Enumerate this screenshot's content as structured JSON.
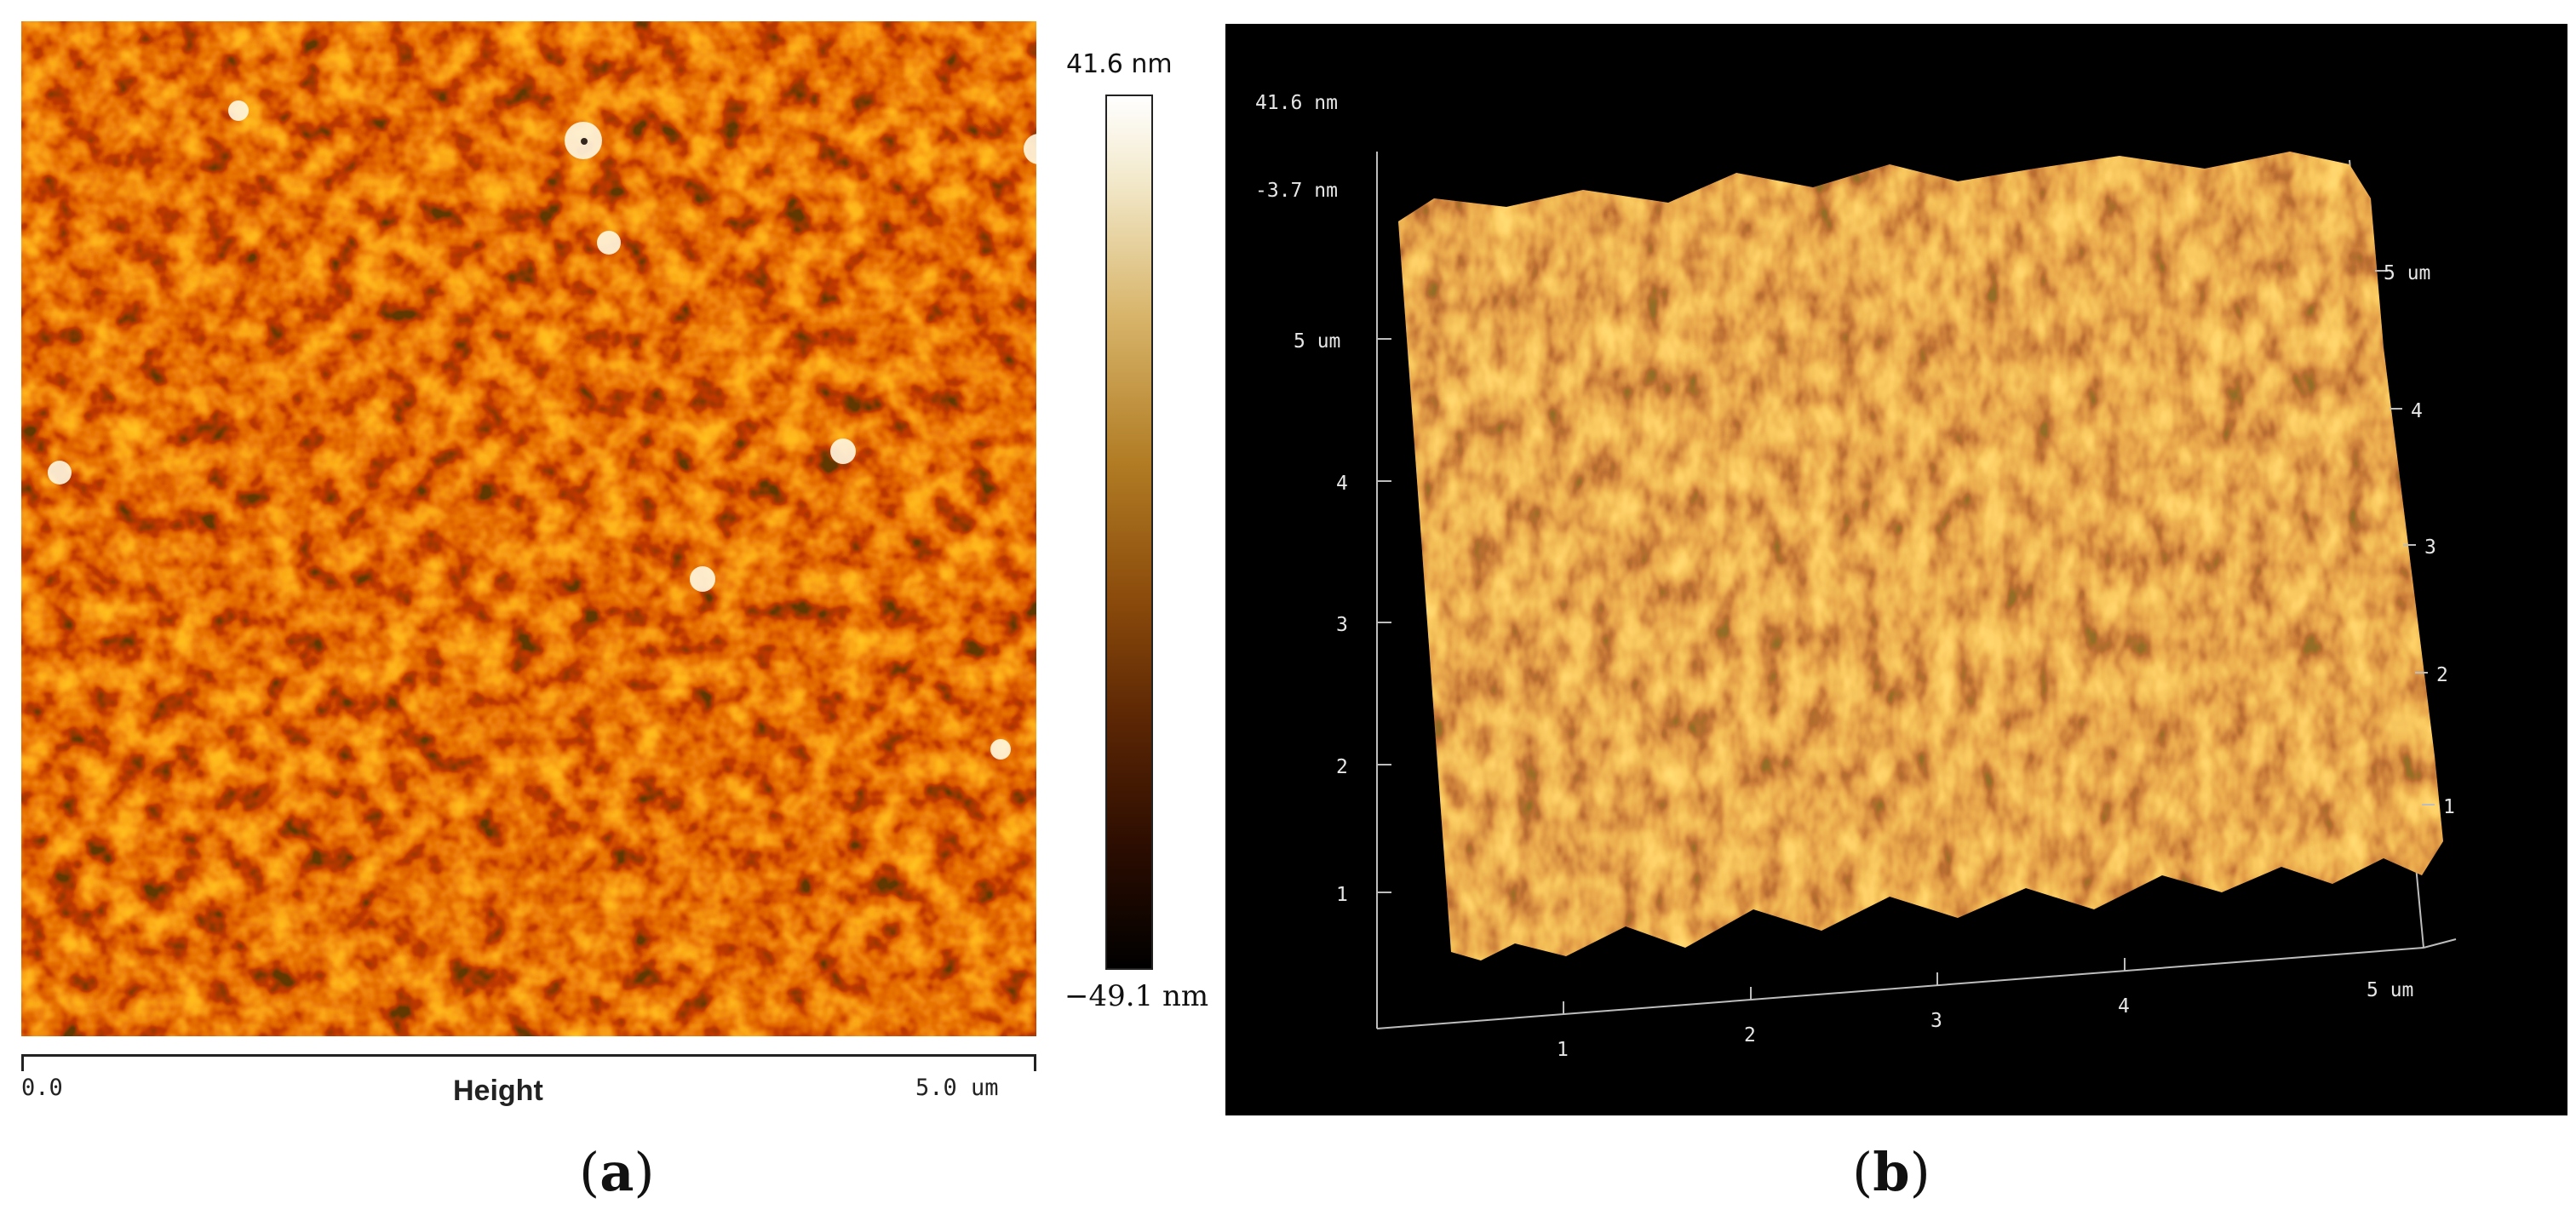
{
  "panel_a": {
    "colorbar": {
      "max_label": "41.6 nm",
      "min_label": "−49.1 nm"
    },
    "scale_bar": {
      "start_label": "0.0",
      "end_label": "5.0 um",
      "channel_label": "Height"
    },
    "caption_open": "(",
    "caption_letter": "a",
    "caption_close": ")"
  },
  "panel_b": {
    "z_max_label": "41.6 nm",
    "z_mid_label": "-3.7 nm",
    "left_axis_ticks": [
      "5 um",
      "4",
      "3",
      "2",
      "1"
    ],
    "right_axis_ticks": [
      "5 um",
      "4",
      "3",
      "2",
      "1"
    ],
    "bottom_axis_ticks": [
      "1",
      "2",
      "3",
      "4",
      "5 um"
    ],
    "caption_open": "(",
    "caption_letter": "b",
    "caption_close": ")"
  },
  "colors": {
    "afm_dark": "#2a0c00",
    "afm_mid": "#9a5a10",
    "afm_light": "#ffffff",
    "panel_b_background": "#000000"
  }
}
